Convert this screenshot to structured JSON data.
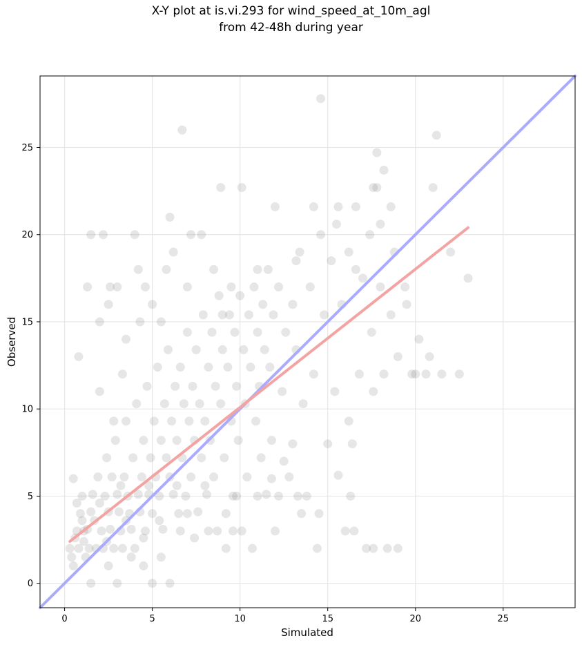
{
  "chart_data": {
    "type": "scatter",
    "title_line1": "X-Y plot at is.vi.293 for wind_speed_at_10m_agl",
    "title_line2": "from 42-48h during year",
    "xlabel": "Simulated",
    "ylabel": "Observed",
    "xlim": [
      -1.4,
      29.1
    ],
    "ylim": [
      -1.4,
      29.1
    ],
    "x_ticks": [
      0,
      5,
      10,
      15,
      20,
      25
    ],
    "y_ticks": [
      0,
      5,
      10,
      15,
      20,
      25
    ],
    "grid": true,
    "point_color": "#808080",
    "identity_line": {
      "color": "#aaaaff",
      "from": [
        -1.4,
        -1.4
      ],
      "to": [
        29.1,
        29.1
      ]
    },
    "fit_line": {
      "color": "#f4a3a3",
      "from": [
        0.3,
        2.4
      ],
      "to": [
        23.0,
        20.4
      ]
    },
    "points": [
      [
        0.3,
        2.0
      ],
      [
        0.4,
        1.5
      ],
      [
        0.5,
        1.0
      ],
      [
        0.6,
        2.6
      ],
      [
        0.7,
        3.0
      ],
      [
        0.8,
        2.0
      ],
      [
        0.9,
        4.0
      ],
      [
        1.0,
        3.6
      ],
      [
        1.1,
        2.4
      ],
      [
        1.2,
        1.5
      ],
      [
        1.3,
        3.1
      ],
      [
        1.4,
        2.0
      ],
      [
        1.5,
        4.1
      ],
      [
        1.6,
        5.1
      ],
      [
        1.7,
        3.6
      ],
      [
        1.8,
        2.0
      ],
      [
        1.9,
        6.1
      ],
      [
        2.0,
        4.6
      ],
      [
        2.1,
        3.0
      ],
      [
        2.2,
        2.0
      ],
      [
        2.3,
        5.0
      ],
      [
        2.4,
        7.2
      ],
      [
        2.5,
        4.1
      ],
      [
        2.6,
        3.1
      ],
      [
        2.7,
        6.1
      ],
      [
        2.8,
        2.0
      ],
      [
        2.9,
        8.2
      ],
      [
        3.0,
        5.1
      ],
      [
        3.1,
        4.1
      ],
      [
        3.2,
        3.0
      ],
      [
        3.3,
        2.0
      ],
      [
        3.4,
        6.1
      ],
      [
        3.5,
        9.3
      ],
      [
        3.6,
        5.0
      ],
      [
        3.7,
        4.0
      ],
      [
        3.8,
        3.1
      ],
      [
        3.9,
        7.2
      ],
      [
        4.0,
        2.0
      ],
      [
        4.1,
        10.3
      ],
      [
        4.2,
        5.1
      ],
      [
        4.3,
        4.1
      ],
      [
        4.4,
        6.1
      ],
      [
        4.5,
        8.2
      ],
      [
        4.6,
        3.0
      ],
      [
        4.7,
        11.3
      ],
      [
        4.8,
        5.1
      ],
      [
        4.9,
        7.2
      ],
      [
        5.0,
        4.0
      ],
      [
        5.1,
        9.3
      ],
      [
        5.2,
        6.1
      ],
      [
        5.3,
        12.4
      ],
      [
        5.4,
        5.0
      ],
      [
        5.5,
        8.2
      ],
      [
        5.6,
        3.1
      ],
      [
        5.7,
        10.3
      ],
      [
        5.8,
        7.2
      ],
      [
        5.9,
        13.4
      ],
      [
        6.0,
        6.1
      ],
      [
        6.1,
        9.3
      ],
      [
        6.2,
        5.1
      ],
      [
        6.3,
        11.3
      ],
      [
        6.4,
        8.2
      ],
      [
        6.5,
        4.0
      ],
      [
        6.6,
        12.4
      ],
      [
        6.7,
        7.2
      ],
      [
        6.8,
        10.3
      ],
      [
        6.9,
        5.0
      ],
      [
        7.0,
        14.4
      ],
      [
        7.1,
        9.3
      ],
      [
        7.2,
        6.1
      ],
      [
        7.3,
        11.3
      ],
      [
        7.4,
        8.2
      ],
      [
        7.5,
        13.4
      ],
      [
        7.6,
        4.1
      ],
      [
        7.7,
        10.3
      ],
      [
        7.8,
        7.2
      ],
      [
        7.9,
        15.4
      ],
      [
        8.0,
        9.3
      ],
      [
        8.1,
        5.1
      ],
      [
        8.2,
        12.4
      ],
      [
        8.3,
        8.2
      ],
      [
        8.4,
        14.4
      ],
      [
        8.5,
        6.1
      ],
      [
        8.6,
        11.3
      ],
      [
        8.7,
        3.0
      ],
      [
        8.8,
        16.5
      ],
      [
        8.9,
        10.3
      ],
      [
        9.0,
        13.4
      ],
      [
        9.1,
        7.2
      ],
      [
        9.2,
        4.0
      ],
      [
        9.3,
        12.4
      ],
      [
        9.4,
        15.4
      ],
      [
        9.5,
        9.3
      ],
      [
        9.6,
        5.0
      ],
      [
        9.7,
        14.4
      ],
      [
        9.8,
        11.3
      ],
      [
        9.9,
        8.2
      ],
      [
        10.0,
        16.5
      ],
      [
        10.1,
        3.0
      ],
      [
        10.2,
        13.4
      ],
      [
        10.3,
        10.3
      ],
      [
        10.4,
        6.1
      ],
      [
        10.5,
        15.4
      ],
      [
        10.6,
        12.4
      ],
      [
        10.7,
        2.0
      ],
      [
        10.8,
        17.0
      ],
      [
        10.9,
        9.3
      ],
      [
        11.0,
        14.4
      ],
      [
        11.1,
        11.3
      ],
      [
        11.2,
        7.2
      ],
      [
        11.3,
        16.0
      ],
      [
        11.4,
        13.4
      ],
      [
        11.5,
        5.1
      ],
      [
        11.6,
        18.0
      ],
      [
        11.7,
        12.4
      ],
      [
        11.8,
        8.2
      ],
      [
        11.9,
        15.4
      ],
      [
        12.0,
        3.0
      ],
      [
        12.2,
        17.0
      ],
      [
        12.4,
        11.0
      ],
      [
        12.6,
        14.4
      ],
      [
        12.8,
        6.1
      ],
      [
        13.0,
        16.0
      ],
      [
        13.2,
        13.4
      ],
      [
        13.4,
        19.0
      ],
      [
        13.6,
        10.3
      ],
      [
        13.8,
        5.0
      ],
      [
        14.0,
        17.0
      ],
      [
        14.2,
        12.0
      ],
      [
        14.4,
        2.0
      ],
      [
        14.6,
        20.0
      ],
      [
        14.8,
        15.4
      ],
      [
        15.0,
        8.0
      ],
      [
        15.2,
        18.5
      ],
      [
        15.4,
        11.0
      ],
      [
        15.6,
        21.6
      ],
      [
        15.8,
        16.0
      ],
      [
        16.0,
        3.0
      ],
      [
        16.2,
        19.0
      ],
      [
        16.4,
        8.0
      ],
      [
        16.6,
        21.6
      ],
      [
        16.8,
        12.0
      ],
      [
        17.0,
        17.5
      ],
      [
        17.2,
        2.0
      ],
      [
        17.4,
        20.0
      ],
      [
        17.6,
        11.0
      ],
      [
        17.8,
        22.7
      ],
      [
        18.0,
        17.0
      ],
      [
        18.2,
        12.0
      ],
      [
        18.4,
        2.0
      ],
      [
        18.6,
        15.4
      ],
      [
        18.8,
        19.0
      ],
      [
        19.0,
        13.0
      ],
      [
        19.4,
        17.0
      ],
      [
        19.8,
        12.0
      ],
      [
        20.2,
        14.0
      ],
      [
        20.6,
        12.0
      ],
      [
        21.0,
        22.7
      ],
      [
        21.2,
        25.7
      ],
      [
        21.5,
        12.0
      ],
      [
        22.0,
        19.0
      ],
      [
        22.5,
        12.0
      ],
      [
        23.0,
        17.5
      ],
      [
        6.7,
        26.0
      ],
      [
        14.6,
        27.8
      ],
      [
        17.8,
        24.7
      ],
      [
        19.0,
        2.0
      ],
      [
        17.6,
        2.0
      ],
      [
        0.8,
        13.0
      ],
      [
        2.0,
        11.0
      ],
      [
        3.5,
        14.0
      ],
      [
        1.5,
        20.0
      ],
      [
        2.2,
        20.0
      ],
      [
        4.0,
        20.0
      ],
      [
        6.0,
        21.0
      ],
      [
        7.8,
        20.0
      ],
      [
        8.9,
        22.7
      ],
      [
        10.1,
        22.7
      ],
      [
        12.0,
        21.6
      ],
      [
        14.2,
        21.6
      ],
      [
        3.0,
        0.0
      ],
      [
        1.5,
        0.0
      ],
      [
        5.0,
        0.0
      ],
      [
        6.0,
        0.0
      ],
      [
        2.5,
        1.0
      ],
      [
        4.5,
        1.0
      ],
      [
        5.5,
        1.5
      ],
      [
        3.8,
        1.5
      ],
      [
        1.0,
        5.0
      ],
      [
        0.5,
        6.0
      ],
      [
        2.8,
        9.3
      ],
      [
        3.3,
        12.0
      ],
      [
        4.3,
        15.0
      ],
      [
        5.5,
        15.0
      ],
      [
        1.3,
        17.0
      ],
      [
        2.6,
        17.0
      ],
      [
        4.6,
        17.0
      ],
      [
        5.8,
        18.0
      ],
      [
        7.0,
        17.0
      ],
      [
        8.5,
        18.0
      ],
      [
        9.5,
        17.0
      ],
      [
        16.2,
        9.3
      ],
      [
        15.6,
        6.2
      ],
      [
        16.3,
        5.0
      ],
      [
        16.5,
        3.0
      ],
      [
        13.5,
        4.0
      ],
      [
        14.5,
        4.0
      ],
      [
        12.5,
        7.0
      ],
      [
        13.0,
        8.0
      ],
      [
        11.8,
        6.0
      ],
      [
        20.0,
        12.0
      ],
      [
        20.8,
        13.0
      ],
      [
        19.5,
        16.0
      ],
      [
        18.0,
        20.6
      ],
      [
        18.6,
        21.6
      ],
      [
        17.6,
        22.7
      ],
      [
        18.2,
        23.7
      ],
      [
        15.5,
        20.6
      ],
      [
        16.6,
        18.0
      ],
      [
        17.5,
        14.4
      ],
      [
        2.5,
        16.0
      ],
      [
        3.0,
        17.0
      ],
      [
        4.2,
        18.0
      ],
      [
        6.2,
        19.0
      ],
      [
        7.2,
        20.0
      ],
      [
        9.0,
        15.4
      ],
      [
        11.0,
        18.0
      ],
      [
        13.2,
        18.5
      ],
      [
        2.0,
        15.0
      ],
      [
        5.0,
        16.0
      ],
      [
        0.7,
        4.6
      ],
      [
        1.1,
        3.0
      ],
      [
        2.4,
        2.4
      ],
      [
        3.5,
        3.6
      ],
      [
        4.5,
        2.6
      ],
      [
        5.4,
        3.6
      ],
      [
        6.6,
        3.0
      ],
      [
        7.4,
        2.6
      ],
      [
        8.2,
        3.0
      ],
      [
        9.2,
        2.0
      ],
      [
        3.2,
        5.6
      ],
      [
        4.8,
        5.6
      ],
      [
        6.4,
        5.6
      ],
      [
        8.0,
        5.6
      ],
      [
        9.8,
        5.0
      ],
      [
        11.0,
        5.0
      ],
      [
        12.2,
        5.0
      ],
      [
        13.3,
        5.0
      ],
      [
        7.0,
        4.0
      ],
      [
        9.6,
        3.0
      ]
    ]
  }
}
